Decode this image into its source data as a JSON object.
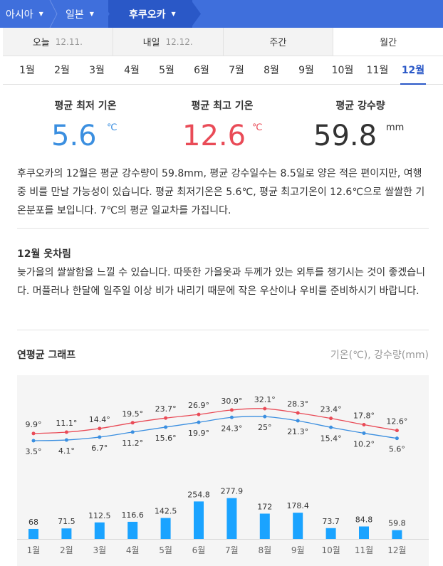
{
  "breadcrumb": [
    "아시아",
    "일본",
    "후쿠오카"
  ],
  "day_tabs": [
    {
      "label": "오늘",
      "date": "12.11."
    },
    {
      "label": "내일",
      "date": "12.12."
    },
    {
      "label": "주간",
      "date": ""
    },
    {
      "label": "월간",
      "date": ""
    }
  ],
  "months": [
    "1월",
    "2월",
    "3월",
    "4월",
    "5월",
    "6월",
    "7월",
    "8월",
    "9월",
    "10월",
    "11월",
    "12월"
  ],
  "selected_month": "12월",
  "stats": {
    "min_title": "평균 최저 기온",
    "min_value": "5.6",
    "min_unit": "℃",
    "max_title": "평균 최고 기온",
    "max_value": "12.6",
    "max_unit": "℃",
    "rain_title": "평균 강수량",
    "rain_value": "59.8",
    "rain_unit": "mm"
  },
  "summary": "후쿠오카의 12월은 평균 강수량이 59.8mm, 평균 강수일수는 8.5일로 양은 적은 편이지만, 여행 중 비를 만날 가능성이 있습니다. 평균 최저기온은 5.6℃, 평균 최고기온이 12.6℃으로 쌀쌀한 기온분포를 보입니다. 7℃의 평균 일교차를 가집니다.",
  "clothing": {
    "title": "12월 옷차림",
    "text": "늦가을의 쌀쌀함을 느낄 수 있습니다. 따뜻한 가을옷과 두께가 있는 외투를 챙기시는 것이 좋겠습니다. 머플러나 한달에 일주일 이상 비가 내리기 때문에 작은 우산이나 우비를 준비하시기 바랍니다."
  },
  "graph": {
    "title": "연평균 그래프",
    "unit_label": "기온(℃), 강수량(mm)"
  },
  "colors": {
    "brand": "#3f6fdc",
    "brand_dark": "#2a58c7",
    "min_temp": "#3b8fe0",
    "max_temp": "#e94b57",
    "rain_bar": "#1aa3ff"
  },
  "chart_data": {
    "type": "line+bar",
    "categories": [
      "1월",
      "2월",
      "3월",
      "4월",
      "5월",
      "6월",
      "7월",
      "8월",
      "9월",
      "10월",
      "11월",
      "12월"
    ],
    "series": [
      {
        "name": "최고 기온",
        "type": "line",
        "values": [
          9.9,
          11.1,
          14.4,
          19.5,
          23.7,
          26.9,
          30.9,
          32.1,
          28.3,
          23.4,
          17.8,
          12.6
        ],
        "labels": [
          "9.9°",
          "11.1°",
          "14.4°",
          "19.5°",
          "23.7°",
          "26.9°",
          "30.9°",
          "32.1°",
          "28.3°",
          "23.4°",
          "17.8°",
          "12.6°"
        ]
      },
      {
        "name": "최저 기온",
        "type": "line",
        "values": [
          3.5,
          4.1,
          6.7,
          11.2,
          15.6,
          19.9,
          24.3,
          25,
          21.3,
          15.4,
          10.2,
          5.6
        ],
        "labels": [
          "3.5°",
          "4.1°",
          "6.7°",
          "11.2°",
          "15.6°",
          "19.9°",
          "24.3°",
          "25°",
          "21.3°",
          "15.4°",
          "10.2°",
          "5.6°"
        ]
      },
      {
        "name": "강수량",
        "type": "bar",
        "values": [
          68,
          71.5,
          112.5,
          116.6,
          142.5,
          254.8,
          277.9,
          172,
          178.4,
          73.7,
          84.8,
          59.8
        ],
        "labels": [
          "68",
          "71.5",
          "112.5",
          "116.6",
          "142.5",
          "254.8",
          "277.9",
          "172",
          "178.4",
          "73.7",
          "84.8",
          "59.8"
        ]
      }
    ]
  }
}
